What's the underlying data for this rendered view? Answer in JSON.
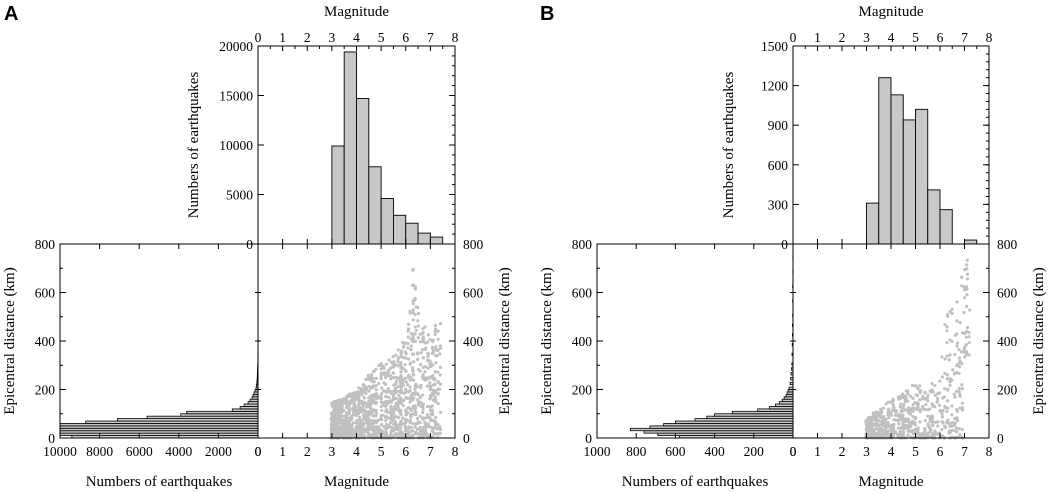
{
  "chart_data": [
    {
      "panel": "A",
      "type": "histogram+scatter",
      "magnitude_histogram": {
        "title": "Magnitude",
        "ylabel": "Numbers of earthquakes",
        "xlim": [
          0,
          8
        ],
        "ylim": [
          0,
          20000
        ],
        "xticks": [
          "0",
          "1",
          "2",
          "3",
          "4",
          "5",
          "6",
          "7",
          "8"
        ],
        "yticks": [
          "0",
          "5000",
          "10000",
          "15000",
          "20000"
        ],
        "bins": [
          3,
          3.5,
          4,
          4.5,
          5,
          5.5,
          6,
          6.5,
          7,
          7.5
        ],
        "counts": [
          9900,
          19400,
          14700,
          7800,
          4600,
          2900,
          2100,
          1100,
          700
        ]
      },
      "distance_histogram": {
        "xlabel": "Numbers of earthquakes",
        "ylabel": "Epicentral distance (km)",
        "xlim": [
          10000,
          0
        ],
        "ylim": [
          0,
          800
        ],
        "xticks": [
          "10000",
          "8000",
          "6000",
          "4000",
          "2000",
          "0"
        ],
        "yticks": [
          "0",
          "200",
          "400",
          "600",
          "800"
        ],
        "bin_width_km": 10,
        "bins_start_km": [
          0,
          10,
          20,
          30,
          40,
          50,
          60,
          70,
          80,
          90,
          100,
          110,
          120,
          130,
          140,
          150,
          160,
          170,
          180,
          190,
          200,
          210,
          220,
          230,
          240,
          250,
          260,
          270,
          280,
          290,
          300,
          320,
          340,
          360,
          380,
          400,
          420,
          440
        ],
        "counts": [
          9400,
          10000,
          10000,
          10000,
          10000,
          10000,
          8700,
          7100,
          5600,
          3900,
          3600,
          1300,
          900,
          700,
          500,
          400,
          300,
          250,
          200,
          150,
          100,
          80,
          60,
          50,
          40,
          35,
          30,
          25,
          20,
          15,
          12,
          10,
          8,
          6,
          5,
          4,
          3,
          2
        ]
      },
      "scatter": {
        "xlabel": "Magnitude",
        "ylabel": "Epicentral distance (km)",
        "xlim": [
          0,
          8
        ],
        "ylim": [
          0,
          800
        ],
        "xticks": [
          "0",
          "1",
          "2",
          "3",
          "4",
          "5",
          "6",
          "7",
          "8"
        ],
        "yticks": [
          "0",
          "200",
          "400",
          "600",
          "800"
        ],
        "magnitude_range": [
          3,
          7.4
        ],
        "approx_max_distance_km": [
          [
            3.0,
            150
          ],
          [
            3.5,
            170
          ],
          [
            4.0,
            200
          ],
          [
            4.5,
            260
          ],
          [
            5.0,
            310
          ],
          [
            5.5,
            340
          ],
          [
            6.0,
            420
          ],
          [
            6.2,
            540
          ],
          [
            6.3,
            700
          ],
          [
            6.6,
            480
          ],
          [
            7.0,
            440
          ],
          [
            7.3,
            520
          ]
        ],
        "color": "#c0c0c0"
      }
    },
    {
      "panel": "B",
      "type": "histogram+scatter",
      "magnitude_histogram": {
        "title": "Magnitude",
        "ylabel": "Numbers of earthquakes",
        "xlim": [
          0,
          8
        ],
        "ylim": [
          0,
          1500
        ],
        "xticks": [
          "0",
          "1",
          "2",
          "3",
          "4",
          "5",
          "6",
          "7",
          "8"
        ],
        "yticks": [
          "0",
          "300",
          "600",
          "900",
          "1200",
          "1500"
        ],
        "bins": [
          3,
          3.5,
          4,
          4.5,
          5,
          5.5,
          6,
          6.5,
          7,
          7.5
        ],
        "counts": [
          310,
          1260,
          1130,
          940,
          1020,
          410,
          260,
          0,
          30
        ]
      },
      "distance_histogram": {
        "xlabel": "Numbers of earthquakes",
        "ylabel": "Epicentral distance (km)",
        "xlim": [
          1000,
          0
        ],
        "ylim": [
          0,
          800
        ],
        "xticks": [
          "1000",
          "800",
          "600",
          "400",
          "200",
          "0"
        ],
        "yticks": [
          "0",
          "200",
          "400",
          "600",
          "800"
        ],
        "bin_width_km": 10,
        "bins_start_km": [
          0,
          10,
          20,
          30,
          40,
          50,
          60,
          70,
          80,
          90,
          100,
          110,
          120,
          130,
          140,
          150,
          160,
          170,
          180,
          190,
          200,
          220,
          240,
          260,
          280,
          300,
          340,
          380,
          420,
          460,
          500,
          560,
          620,
          680,
          740
        ],
        "counts": [
          580,
          690,
          760,
          830,
          730,
          660,
          600,
          500,
          440,
          400,
          310,
          180,
          120,
          90,
          70,
          55,
          45,
          35,
          30,
          25,
          20,
          15,
          12,
          10,
          8,
          6,
          5,
          4,
          3,
          3,
          2,
          2,
          2,
          1,
          1
        ]
      },
      "scatter": {
        "xlabel": "Magnitude",
        "ylabel": "Epicentral distance (km)",
        "xlim": [
          0,
          8
        ],
        "ylim": [
          0,
          800
        ],
        "xticks": [
          "0",
          "1",
          "2",
          "3",
          "4",
          "5",
          "6",
          "7",
          "8"
        ],
        "yticks": [
          "0",
          "200",
          "400",
          "600",
          "800"
        ],
        "magnitude_range": [
          3,
          7.2
        ],
        "approx_max_distance_km": [
          [
            3.0,
            80
          ],
          [
            3.5,
            120
          ],
          [
            4.0,
            160
          ],
          [
            4.5,
            190
          ],
          [
            5.0,
            230
          ],
          [
            5.5,
            200
          ],
          [
            5.8,
            270
          ],
          [
            6.1,
            340
          ],
          [
            6.2,
            490
          ],
          [
            7.2,
            760
          ]
        ],
        "color": "#c0c0c0"
      }
    }
  ]
}
